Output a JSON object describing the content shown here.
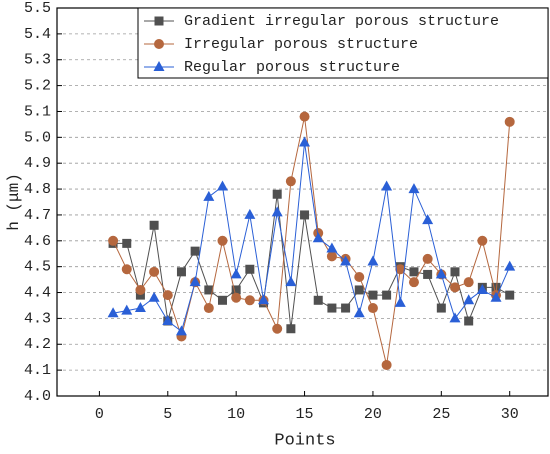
{
  "chart_data": {
    "type": "line",
    "x_label": "Points",
    "y_label": "h (μm)",
    "x": [
      1,
      2,
      3,
      4,
      5,
      6,
      7,
      8,
      9,
      10,
      11,
      12,
      13,
      14,
      15,
      16,
      17,
      18,
      19,
      20,
      21,
      22,
      23,
      24,
      25,
      26,
      27,
      28,
      29,
      30
    ],
    "series": [
      {
        "name": "Gradient irregular porous structure",
        "color": "#505050",
        "marker": "square",
        "values": [
          4.59,
          4.59,
          4.39,
          4.66,
          4.29,
          4.48,
          4.56,
          4.41,
          4.37,
          4.41,
          4.49,
          4.36,
          4.78,
          4.26,
          4.7,
          4.37,
          4.34,
          4.34,
          4.41,
          4.39,
          4.39,
          4.5,
          4.48,
          4.47,
          4.34,
          4.48,
          4.29,
          4.42,
          4.42,
          4.39
        ]
      },
      {
        "name": "Irregular porous structure",
        "color": "#b5673e",
        "marker": "circle",
        "values": [
          4.6,
          4.49,
          4.41,
          4.48,
          4.39,
          4.23,
          4.44,
          4.34,
          4.6,
          4.38,
          4.37,
          4.37,
          4.26,
          4.83,
          5.08,
          4.63,
          4.54,
          4.53,
          4.46,
          4.34,
          4.12,
          4.49,
          4.44,
          4.53,
          4.47,
          4.42,
          4.44,
          4.6,
          4.39,
          5.06
        ]
      },
      {
        "name": "Regular porous structure",
        "color": "#2a5fd6",
        "marker": "triangle",
        "values": [
          4.32,
          4.33,
          4.34,
          4.38,
          4.29,
          4.25,
          4.44,
          4.77,
          4.81,
          4.47,
          4.7,
          4.37,
          4.71,
          4.44,
          4.98,
          4.61,
          4.57,
          4.52,
          4.32,
          4.52,
          4.81,
          4.36,
          4.8,
          4.68,
          4.47,
          4.3,
          4.37,
          4.41,
          4.38,
          4.5
        ]
      }
    ],
    "xlim": [
      -3.1,
      32.8
    ],
    "xticks": [
      0,
      5,
      10,
      15,
      20,
      25,
      30
    ],
    "ylim": [
      4.0,
      5.5
    ],
    "yticks": [
      {
        "value": 4.0,
        "label": "4.0"
      },
      4.1,
      4.2,
      4.3,
      4.4,
      4.5,
      4.6,
      4.7,
      4.8,
      4.9,
      {
        "value": 5.0,
        "label": "5.0"
      },
      5.1,
      5.2,
      5.3,
      5.4,
      5.5
    ],
    "grid": true,
    "legend": "upper right"
  }
}
